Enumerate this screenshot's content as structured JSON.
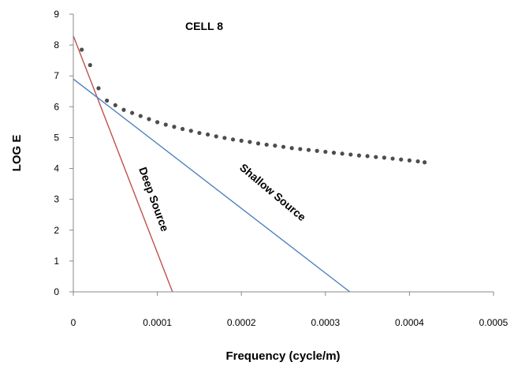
{
  "chart_data": {
    "type": "scatter",
    "title": "CELL 8",
    "xlabel": "Frequency (cycle/m)",
    "ylabel": "LOG E",
    "xlim": [
      0,
      0.0005
    ],
    "ylim": [
      0,
      9
    ],
    "x_ticks": [
      "0",
      "0.0001",
      "0.0002",
      "0.0003",
      "0.0004",
      "0.0005"
    ],
    "y_ticks": [
      "0",
      "1",
      "2",
      "3",
      "4",
      "5",
      "6",
      "7",
      "8",
      "9"
    ],
    "grid": false,
    "series": [
      {
        "type": "scatter",
        "color": "#4d4d4d",
        "points": [
          [
            1e-05,
            7.85
          ],
          [
            2e-05,
            7.35
          ],
          [
            3e-05,
            6.6
          ],
          [
            4e-05,
            6.2
          ],
          [
            5e-05,
            6.05
          ],
          [
            6e-05,
            5.9
          ],
          [
            7e-05,
            5.8
          ],
          [
            8e-05,
            5.7
          ],
          [
            9e-05,
            5.6
          ],
          [
            0.0001,
            5.5
          ],
          [
            0.00011,
            5.42
          ],
          [
            0.00012,
            5.35
          ],
          [
            0.00013,
            5.28
          ],
          [
            0.00014,
            5.22
          ],
          [
            0.00015,
            5.15
          ],
          [
            0.00016,
            5.1
          ],
          [
            0.00017,
            5.04
          ],
          [
            0.00018,
            4.99
          ],
          [
            0.00019,
            4.94
          ],
          [
            0.0002,
            4.9
          ],
          [
            0.00021,
            4.86
          ],
          [
            0.00022,
            4.81
          ],
          [
            0.00023,
            4.77
          ],
          [
            0.00024,
            4.74
          ],
          [
            0.00025,
            4.7
          ],
          [
            0.00026,
            4.66
          ],
          [
            0.00027,
            4.63
          ],
          [
            0.00028,
            4.6
          ],
          [
            0.00029,
            4.57
          ],
          [
            0.0003,
            4.54
          ],
          [
            0.00031,
            4.51
          ],
          [
            0.00032,
            4.48
          ],
          [
            0.00033,
            4.45
          ],
          [
            0.00034,
            4.42
          ],
          [
            0.00035,
            4.4
          ],
          [
            0.00036,
            4.37
          ],
          [
            0.00037,
            4.35
          ],
          [
            0.00038,
            4.32
          ],
          [
            0.00039,
            4.29
          ],
          [
            0.0004,
            4.26
          ],
          [
            0.00041,
            4.23
          ],
          [
            0.000418,
            4.2
          ]
        ]
      },
      {
        "name": "Deep Source",
        "type": "line",
        "color": "#c0504d",
        "points": [
          [
            0,
            8.3
          ],
          [
            0.000118,
            0
          ]
        ]
      },
      {
        "name": "Shallow Source",
        "type": "line",
        "color": "#4f81bd",
        "points": [
          [
            0,
            6.9
          ],
          [
            0.000329,
            0
          ]
        ]
      }
    ]
  }
}
